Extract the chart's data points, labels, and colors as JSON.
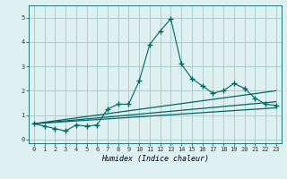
{
  "title": "",
  "xlabel": "Humidex (Indice chaleur)",
  "ylabel": "",
  "background_color": "#dff0f0",
  "grid_color": "#aacccc",
  "line_color": "#006666",
  "xlim": [
    -0.5,
    23.5
  ],
  "ylim": [
    -0.15,
    5.5
  ],
  "xticks": [
    0,
    1,
    2,
    3,
    4,
    5,
    6,
    7,
    8,
    9,
    10,
    11,
    12,
    13,
    14,
    15,
    16,
    17,
    18,
    19,
    20,
    21,
    22,
    23
  ],
  "yticks": [
    0,
    1,
    2,
    3,
    4,
    5
  ],
  "series1_x": [
    0,
    1,
    2,
    3,
    4,
    5,
    6,
    7,
    8,
    9,
    10,
    11,
    12,
    13,
    14,
    15,
    16,
    17,
    18,
    19,
    20,
    21,
    22,
    23
  ],
  "series1_y": [
    0.65,
    0.55,
    0.45,
    0.35,
    0.6,
    0.55,
    0.6,
    1.25,
    1.45,
    1.45,
    2.4,
    3.9,
    4.45,
    4.95,
    3.1,
    2.5,
    2.2,
    1.9,
    2.0,
    2.3,
    2.1,
    1.7,
    1.45,
    1.4
  ],
  "series2_x": [
    0,
    23
  ],
  "series2_y": [
    0.65,
    2.0
  ],
  "series3_x": [
    0,
    23
  ],
  "series3_y": [
    0.65,
    1.55
  ],
  "series4_x": [
    0,
    23
  ],
  "series4_y": [
    0.65,
    1.3
  ]
}
